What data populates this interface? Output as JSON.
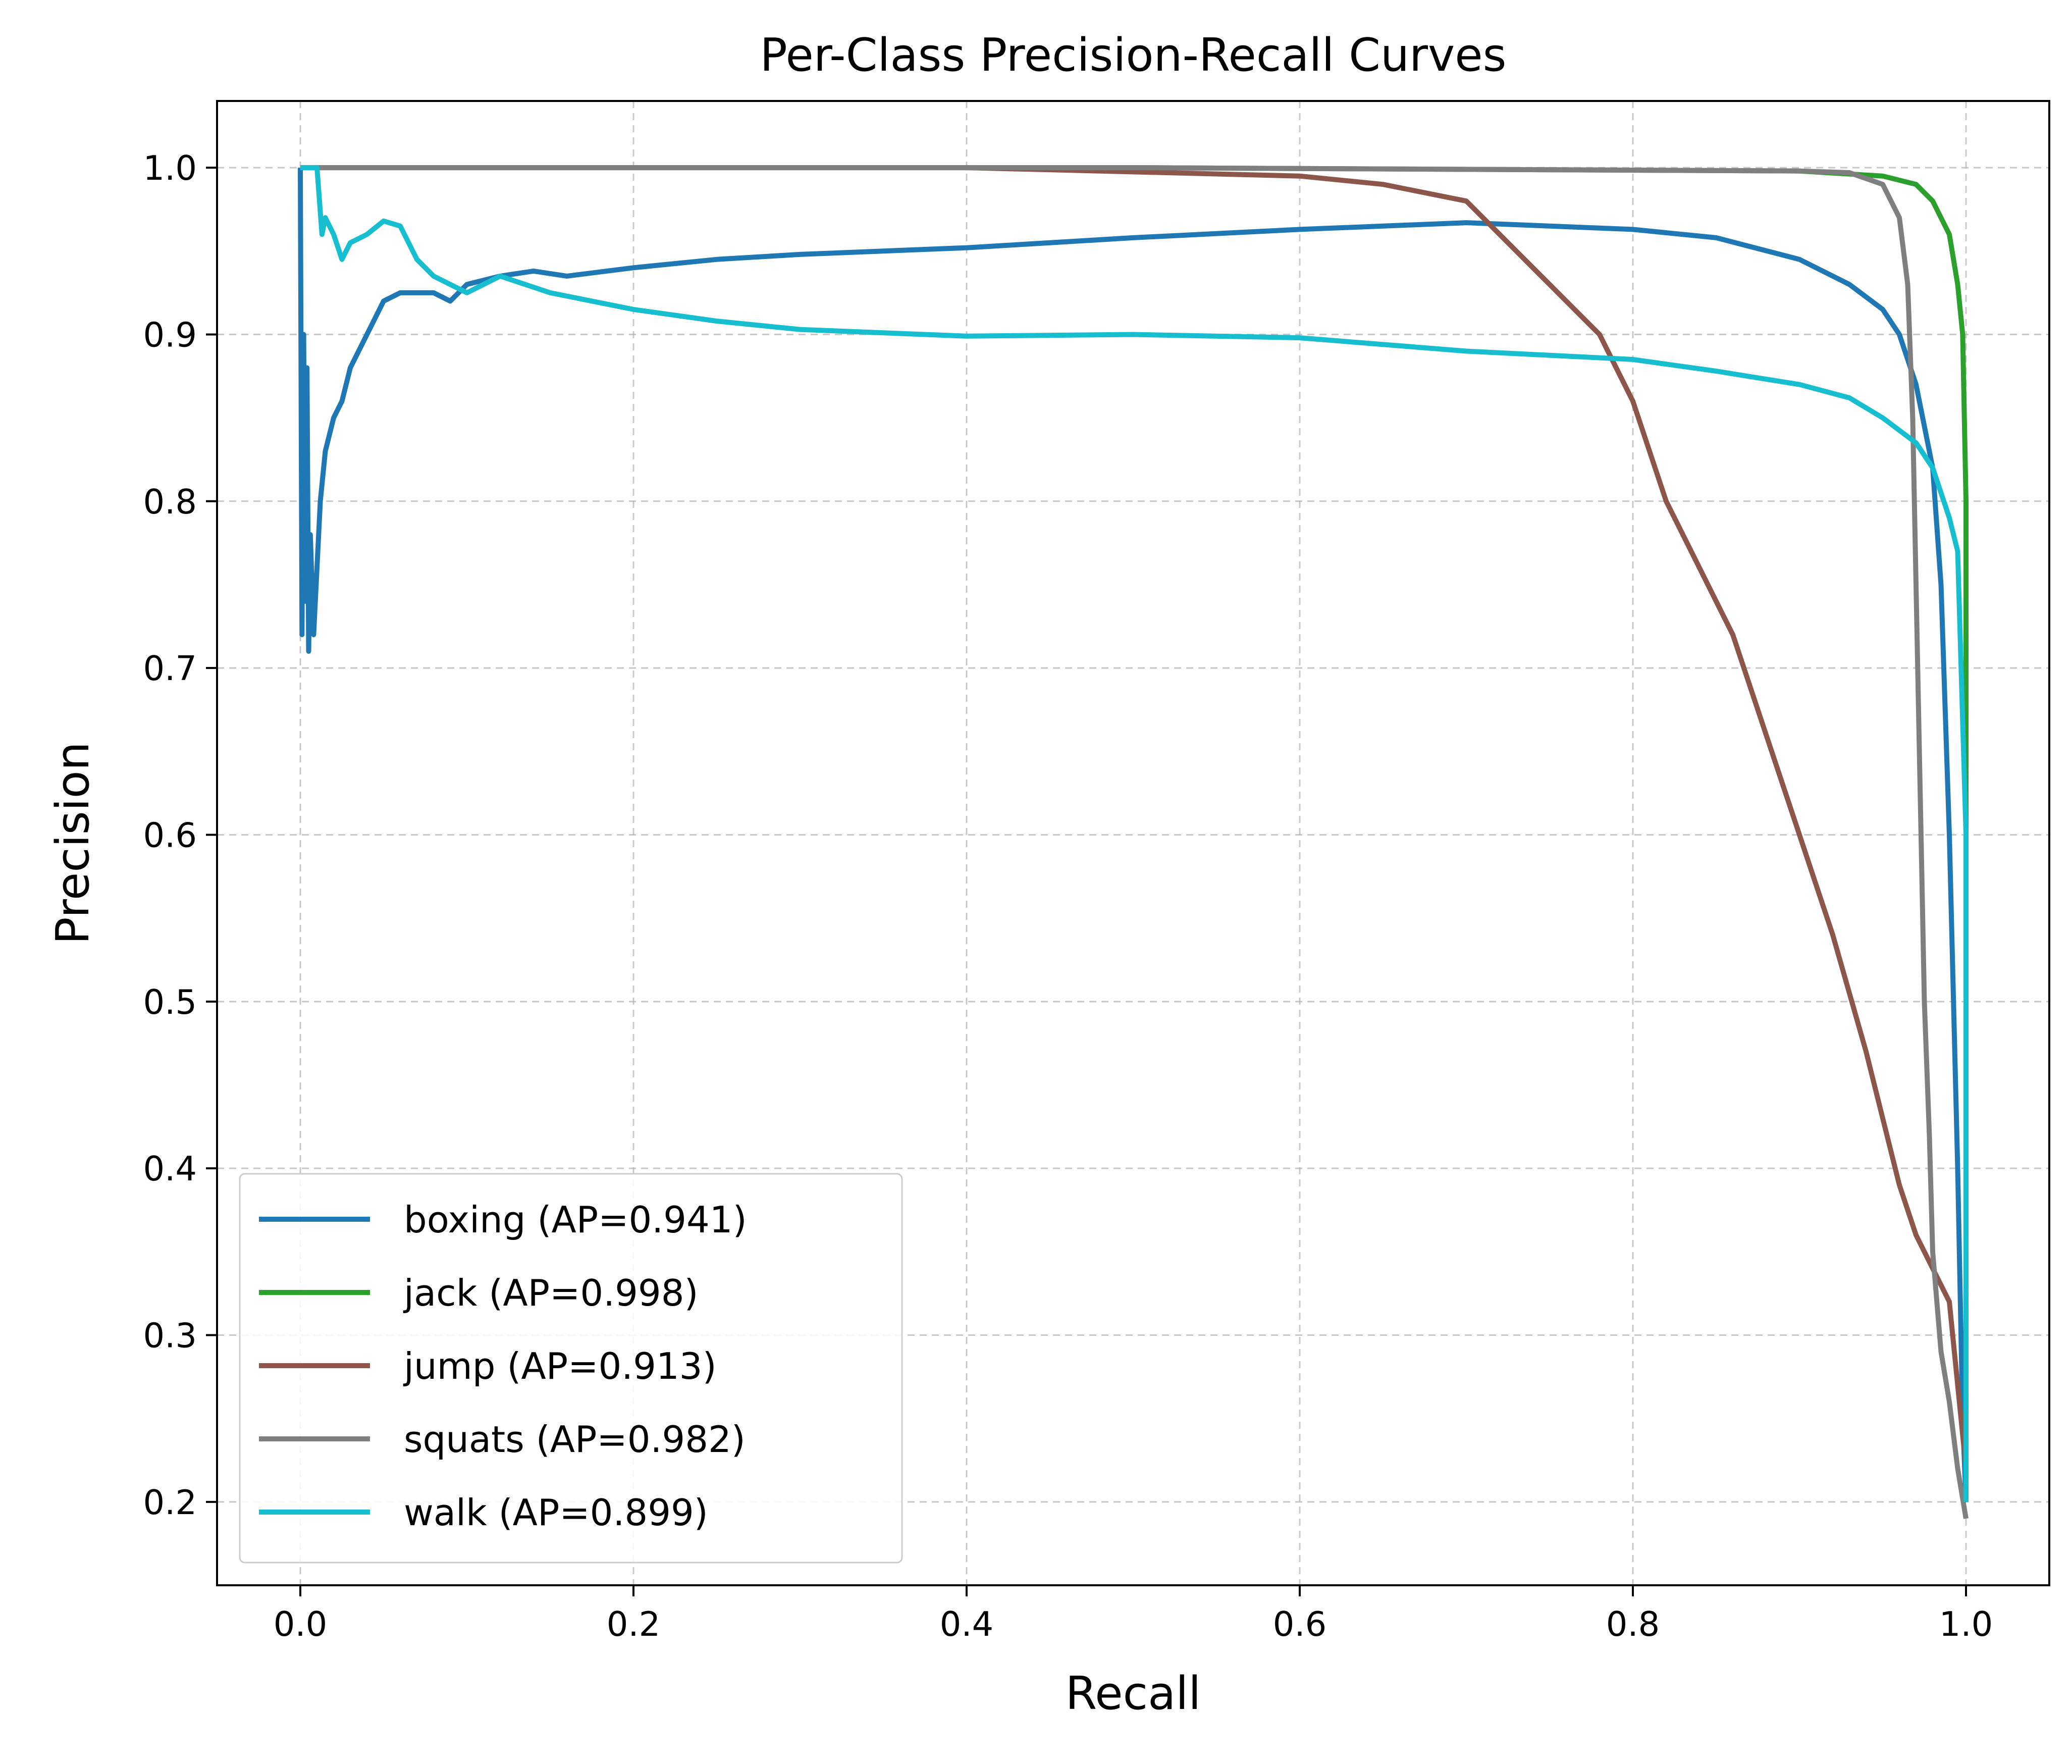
{
  "chart_data": {
    "type": "line",
    "title": "Per-Class Precision-Recall Curves",
    "xlabel": "Recall",
    "ylabel": "Precision",
    "xlim": [
      -0.05,
      1.05
    ],
    "ylim": [
      0.15,
      1.04
    ],
    "xticks": [
      0.0,
      0.2,
      0.4,
      0.6,
      0.8,
      1.0
    ],
    "xtick_labels": [
      "0.0",
      "0.2",
      "0.4",
      "0.6",
      "0.8",
      "1.0"
    ],
    "yticks": [
      0.2,
      0.3,
      0.4,
      0.5,
      0.6,
      0.7,
      0.8,
      0.9,
      1.0
    ],
    "ytick_labels": [
      "0.2",
      "0.3",
      "0.4",
      "0.5",
      "0.6",
      "0.7",
      "0.8",
      "0.9",
      "1.0"
    ],
    "grid": true,
    "legend_position": "lower-left",
    "series": [
      {
        "name": "boxing (AP=0.941)",
        "color": "#1f77b4",
        "x": [
          0.0,
          0.001,
          0.002,
          0.003,
          0.004,
          0.005,
          0.006,
          0.008,
          0.01,
          0.012,
          0.015,
          0.02,
          0.025,
          0.03,
          0.04,
          0.05,
          0.06,
          0.07,
          0.08,
          0.09,
          0.1,
          0.12,
          0.14,
          0.16,
          0.2,
          0.25,
          0.3,
          0.4,
          0.5,
          0.6,
          0.7,
          0.8,
          0.85,
          0.9,
          0.93,
          0.95,
          0.96,
          0.97,
          0.98,
          0.985,
          0.99,
          0.995,
          0.998,
          1.0
        ],
        "y": [
          1.0,
          0.72,
          0.9,
          0.74,
          0.88,
          0.71,
          0.78,
          0.72,
          0.76,
          0.8,
          0.83,
          0.85,
          0.86,
          0.88,
          0.9,
          0.92,
          0.925,
          0.925,
          0.925,
          0.92,
          0.93,
          0.935,
          0.938,
          0.935,
          0.94,
          0.945,
          0.948,
          0.952,
          0.958,
          0.963,
          0.967,
          0.963,
          0.958,
          0.945,
          0.93,
          0.915,
          0.9,
          0.87,
          0.82,
          0.75,
          0.6,
          0.4,
          0.25,
          0.2
        ]
      },
      {
        "name": "jack (AP=0.998)",
        "color": "#2ca02c",
        "x": [
          0.0,
          0.5,
          0.9,
          0.95,
          0.97,
          0.98,
          0.99,
          0.995,
          0.998,
          1.0,
          1.0
        ],
        "y": [
          1.0,
          1.0,
          0.998,
          0.995,
          0.99,
          0.98,
          0.96,
          0.93,
          0.9,
          0.8,
          0.2
        ],
        "y_end": 0.2
      },
      {
        "name": "jump (AP=0.913)",
        "color": "#8c564b",
        "x": [
          0.0,
          0.4,
          0.6,
          0.65,
          0.7,
          0.72,
          0.75,
          0.78,
          0.8,
          0.82,
          0.84,
          0.86,
          0.88,
          0.9,
          0.92,
          0.94,
          0.95,
          0.96,
          0.97,
          0.98,
          0.99,
          1.0
        ],
        "y": [
          1.0,
          1.0,
          0.995,
          0.99,
          0.98,
          0.96,
          0.93,
          0.9,
          0.86,
          0.8,
          0.76,
          0.72,
          0.66,
          0.6,
          0.54,
          0.47,
          0.43,
          0.39,
          0.36,
          0.34,
          0.32,
          0.22
        ]
      },
      {
        "name": "squats (AP=0.982)",
        "color": "#7f7f7f",
        "x": [
          0.0,
          0.5,
          0.9,
          0.93,
          0.95,
          0.96,
          0.965,
          0.968,
          0.97,
          0.972,
          0.975,
          0.978,
          0.98,
          0.985,
          0.99,
          0.995,
          1.0
        ],
        "y": [
          1.0,
          1.0,
          0.998,
          0.997,
          0.99,
          0.97,
          0.93,
          0.85,
          0.75,
          0.65,
          0.5,
          0.42,
          0.35,
          0.29,
          0.26,
          0.22,
          0.19
        ]
      },
      {
        "name": "walk (AP=0.899)",
        "color": "#17becf",
        "x": [
          0.0,
          0.005,
          0.01,
          0.013,
          0.015,
          0.02,
          0.025,
          0.03,
          0.04,
          0.05,
          0.06,
          0.07,
          0.08,
          0.1,
          0.12,
          0.15,
          0.2,
          0.25,
          0.3,
          0.4,
          0.5,
          0.6,
          0.7,
          0.8,
          0.85,
          0.9,
          0.93,
          0.95,
          0.97,
          0.98,
          0.99,
          0.995,
          1.0,
          1.0
        ],
        "y": [
          1.0,
          1.0,
          1.0,
          0.96,
          0.97,
          0.96,
          0.945,
          0.955,
          0.96,
          0.968,
          0.965,
          0.945,
          0.935,
          0.925,
          0.935,
          0.925,
          0.915,
          0.908,
          0.903,
          0.899,
          0.9,
          0.898,
          0.89,
          0.885,
          0.878,
          0.87,
          0.862,
          0.85,
          0.835,
          0.82,
          0.79,
          0.77,
          0.6,
          0.2
        ]
      }
    ]
  }
}
